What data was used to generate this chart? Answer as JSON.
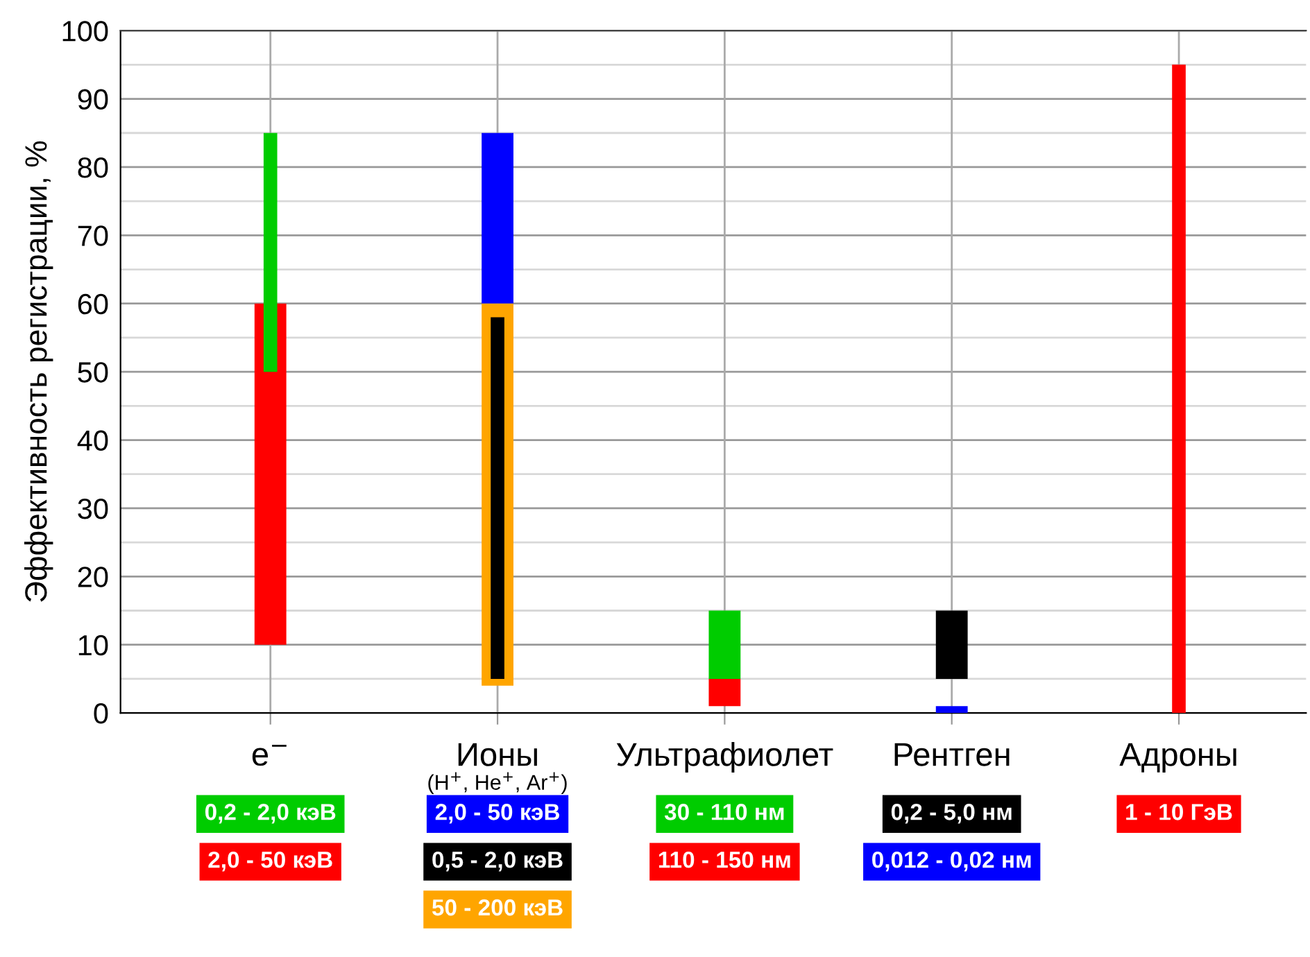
{
  "chart_data": {
    "type": "bar",
    "ylabel": "Эффективность регистрации, %",
    "categories": [
      "e$^{−}$",
      "Ионы\n(H$^{+}$, He$^{+}$, Ar$^{+}$)",
      "Ультрафиолет",
      "Рентген",
      "Адроны"
    ],
    "series": [
      {
        "name": "0,2 - 2,0 кэВ",
        "color": "#00cc00",
        "values": [
          35,
          null,
          null,
          null,
          null
        ],
        "base": [
          50,
          null,
          null,
          null,
          null
        ]
      },
      {
        "name": "2,0 - 50 кэВ",
        "color": "#ff0000",
        "values": [
          50,
          null,
          null,
          null,
          null
        ],
        "base": [
          10,
          null,
          null,
          null,
          null
        ]
      },
      {
        "name": "2,0 - 50 кэВ",
        "color": "#0000ff",
        "values": [
          null,
          25,
          null,
          null,
          null
        ],
        "base": [
          null,
          60,
          null,
          null,
          null
        ]
      },
      {
        "name": "0,5 - 2,0 кэВ",
        "color": "#000000",
        "values": [
          null,
          53,
          null,
          null,
          null
        ],
        "base": [
          null,
          5,
          null,
          null,
          null
        ]
      },
      {
        "name": "50 - 200 кэВ",
        "color": "#ffa500",
        "values": [
          null,
          56,
          null,
          null,
          null
        ],
        "base": [
          null,
          4,
          null,
          null,
          null
        ]
      },
      {
        "name": "30 - 110 нм",
        "color": "#00cc00",
        "values": [
          null,
          null,
          10,
          null,
          null
        ],
        "base": [
          null,
          null,
          5,
          null,
          null
        ]
      },
      {
        "name": "110 - 150 нм",
        "color": "#ff0000",
        "values": [
          null,
          null,
          4,
          null,
          null
        ],
        "base": [
          null,
          null,
          1,
          null,
          null
        ]
      },
      {
        "name": "0,2 - 5,0 нм",
        "color": "#000000",
        "values": [
          null,
          null,
          null,
          10,
          null
        ],
        "base": [
          null,
          null,
          null,
          5,
          null
        ]
      },
      {
        "name": "0,012 - 0,02 нм",
        "color": "#0000ff",
        "values": [
          null,
          null,
          null,
          1,
          null
        ],
        "base": [
          null,
          null,
          null,
          0,
          null
        ]
      },
      {
        "name": "1 - 10 ГэВ",
        "color": "#ff0000",
        "values": [
          null,
          null,
          null,
          null,
          95
        ],
        "base": [
          null,
          null,
          null,
          null,
          0
        ]
      }
    ],
    "ylim": [
      0,
      100
    ],
    "yticks": [
      0,
      10,
      20,
      30,
      40,
      50,
      60,
      70,
      80,
      90,
      100
    ],
    "grid": true,
    "legend": false
  }
}
